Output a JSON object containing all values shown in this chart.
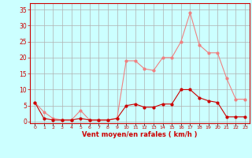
{
  "x": [
    0,
    1,
    2,
    3,
    4,
    5,
    6,
    7,
    8,
    9,
    10,
    11,
    12,
    13,
    14,
    15,
    16,
    17,
    18,
    19,
    20,
    21,
    22,
    23
  ],
  "rafales": [
    6,
    3,
    1,
    0.5,
    0.5,
    3.5,
    0.5,
    0.5,
    0.5,
    1,
    19,
    19,
    16.5,
    16,
    20,
    20,
    25,
    34,
    24,
    21.5,
    21.5,
    13.5,
    7,
    7
  ],
  "moyen": [
    6,
    1,
    0.5,
    0.5,
    0.5,
    1,
    0.5,
    0.5,
    0.5,
    1,
    5,
    5.5,
    4.5,
    4.5,
    5.5,
    5.5,
    10,
    10,
    7.5,
    6.5,
    6,
    1.5,
    1.5,
    1.5
  ],
  "color_rafales": "#f08080",
  "color_moyen": "#cc0000",
  "bg_color": "#ccffff",
  "grid_color": "#b0b0b0",
  "xlabel": "Vent moyen/en rafales ( km/h )",
  "ylabel_ticks": [
    0,
    5,
    10,
    15,
    20,
    25,
    30,
    35
  ],
  "ylim": [
    -0.5,
    37
  ],
  "xlim": [
    -0.5,
    23.5
  ]
}
